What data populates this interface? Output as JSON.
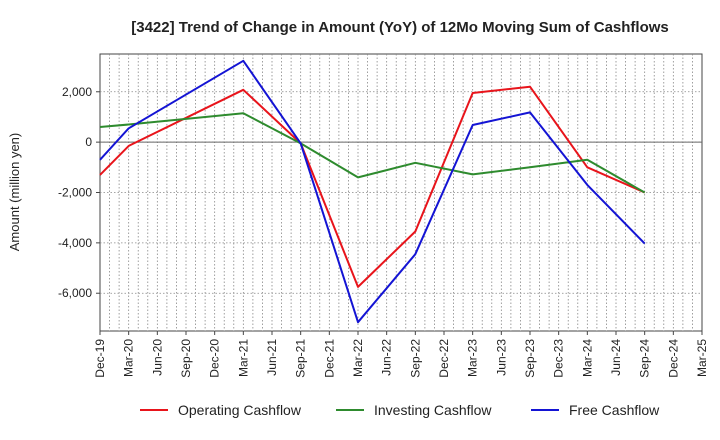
{
  "chart_data": {
    "type": "line",
    "title": "[3422]  Trend of Change in Amount (YoY) of 12Mo Moving Sum of Cashflows",
    "xlabel": "",
    "ylabel": "Amount (million yen)",
    "ylim": [
      -7500,
      3500
    ],
    "yticks": [
      -6000,
      -4000,
      -2000,
      0,
      2000
    ],
    "ytick_labels": [
      "-6,000",
      "-4,000",
      "-2,000",
      "0",
      "2,000"
    ],
    "categories": [
      "Dec-19",
      "Mar-20",
      "Jun-20",
      "Sep-20",
      "Dec-20",
      "Mar-21",
      "Jun-21",
      "Sep-21",
      "Dec-21",
      "Mar-22",
      "Jun-22",
      "Sep-22",
      "Dec-22",
      "Mar-23",
      "Jun-23",
      "Sep-23",
      "Dec-23",
      "Mar-24",
      "Jun-24",
      "Sep-24",
      "Dec-24",
      "Mar-25"
    ],
    "grid": true,
    "legend_position": "bottom",
    "series": [
      {
        "name": "Operating Cashflow",
        "color": "#e8141b",
        "values": [
          -1300,
          -150,
          null,
          null,
          null,
          2080,
          null,
          -50,
          null,
          -5750,
          null,
          -3550,
          null,
          1950,
          null,
          2200,
          null,
          -1000,
          null,
          -2000,
          null,
          null
        ]
      },
      {
        "name": "Investing Cashflow",
        "color": "#2e8b2e",
        "values": [
          600,
          700,
          null,
          null,
          null,
          1150,
          null,
          -50,
          null,
          -1400,
          null,
          -820,
          null,
          -1280,
          null,
          -1000,
          null,
          -700,
          null,
          -2000,
          null,
          null
        ]
      },
      {
        "name": "Free Cashflow",
        "color": "#1414d4",
        "values": [
          -700,
          550,
          null,
          null,
          null,
          3230,
          null,
          -50,
          null,
          -7150,
          null,
          -4450,
          null,
          680,
          null,
          1180,
          null,
          -1700,
          null,
          -4030,
          null,
          null
        ]
      }
    ]
  }
}
